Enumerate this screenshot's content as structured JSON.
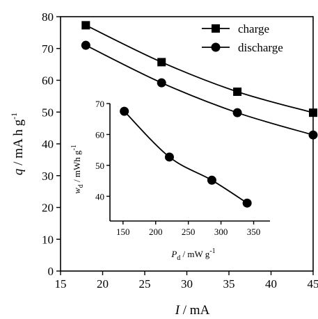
{
  "chart_data": [
    {
      "type": "line",
      "xlabel": {
        "var": "I",
        "unit": " / mA"
      },
      "ylabel": {
        "var": "q",
        "unit": " / mA h g",
        "sup": "-1"
      },
      "xlim": [
        15,
        45
      ],
      "ylim": [
        0,
        80
      ],
      "xticks": [
        "15",
        "20",
        "25",
        "30",
        "35",
        "40",
        "45"
      ],
      "yticks": [
        "0",
        "10",
        "20",
        "30",
        "40",
        "50",
        "60",
        "70",
        "80"
      ],
      "legend_position": "top-right",
      "series": [
        {
          "name": "charge",
          "marker": "square",
          "x": [
            18,
            27,
            36,
            45
          ],
          "y": [
            77.3,
            65.7,
            56.4,
            49.8
          ]
        },
        {
          "name": "discharge",
          "marker": "circle",
          "x": [
            18,
            27,
            36,
            45
          ],
          "y": [
            71.0,
            59.2,
            49.8,
            42.8
          ]
        }
      ]
    },
    {
      "type": "line",
      "inset": true,
      "xlabel": {
        "var": "P",
        "sub": "d",
        "unit": " / mW g",
        "sup": "-1"
      },
      "ylabel": {
        "var": "w",
        "sub": "d",
        "unit": " / mWh g",
        "sup": "-1"
      },
      "xlim": [
        130,
        375
      ],
      "ylim": [
        32,
        70
      ],
      "xticks": [
        "150",
        "200",
        "250",
        "300",
        "350"
      ],
      "yticks": [
        "40",
        "50",
        "60",
        "70"
      ],
      "series": [
        {
          "marker": "circle",
          "x": [
            152,
            221,
            286,
            340
          ],
          "y": [
            67.5,
            52.7,
            45.2,
            37.8
          ]
        }
      ]
    }
  ]
}
